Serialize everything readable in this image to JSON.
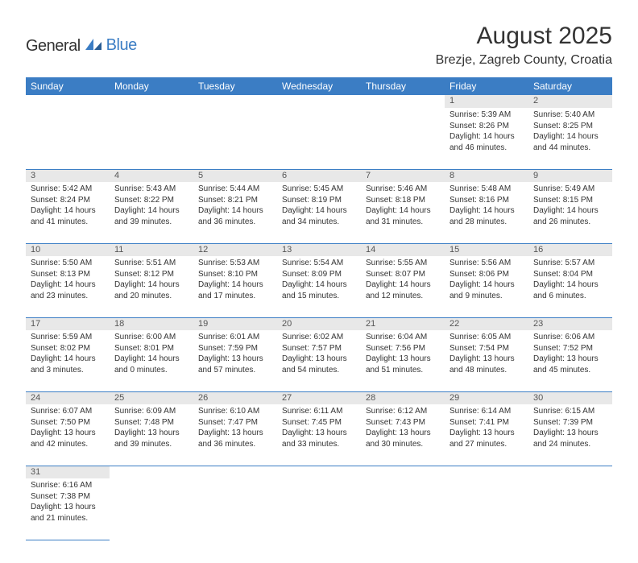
{
  "logo": {
    "text1": "General",
    "text2": "Blue"
  },
  "title": "August 2025",
  "location": "Brezje, Zagreb County, Croatia",
  "colors": {
    "header_bg": "#3b7dc4",
    "daynum_bg": "#e8e8e8",
    "border": "#3b7dc4",
    "text": "#333333"
  },
  "weekdays": [
    "Sunday",
    "Monday",
    "Tuesday",
    "Wednesday",
    "Thursday",
    "Friday",
    "Saturday"
  ],
  "weeks": [
    [
      null,
      null,
      null,
      null,
      null,
      {
        "n": "1",
        "sr": "Sunrise: 5:39 AM",
        "ss": "Sunset: 8:26 PM",
        "dl": "Daylight: 14 hours and 46 minutes."
      },
      {
        "n": "2",
        "sr": "Sunrise: 5:40 AM",
        "ss": "Sunset: 8:25 PM",
        "dl": "Daylight: 14 hours and 44 minutes."
      }
    ],
    [
      {
        "n": "3",
        "sr": "Sunrise: 5:42 AM",
        "ss": "Sunset: 8:24 PM",
        "dl": "Daylight: 14 hours and 41 minutes."
      },
      {
        "n": "4",
        "sr": "Sunrise: 5:43 AM",
        "ss": "Sunset: 8:22 PM",
        "dl": "Daylight: 14 hours and 39 minutes."
      },
      {
        "n": "5",
        "sr": "Sunrise: 5:44 AM",
        "ss": "Sunset: 8:21 PM",
        "dl": "Daylight: 14 hours and 36 minutes."
      },
      {
        "n": "6",
        "sr": "Sunrise: 5:45 AM",
        "ss": "Sunset: 8:19 PM",
        "dl": "Daylight: 14 hours and 34 minutes."
      },
      {
        "n": "7",
        "sr": "Sunrise: 5:46 AM",
        "ss": "Sunset: 8:18 PM",
        "dl": "Daylight: 14 hours and 31 minutes."
      },
      {
        "n": "8",
        "sr": "Sunrise: 5:48 AM",
        "ss": "Sunset: 8:16 PM",
        "dl": "Daylight: 14 hours and 28 minutes."
      },
      {
        "n": "9",
        "sr": "Sunrise: 5:49 AM",
        "ss": "Sunset: 8:15 PM",
        "dl": "Daylight: 14 hours and 26 minutes."
      }
    ],
    [
      {
        "n": "10",
        "sr": "Sunrise: 5:50 AM",
        "ss": "Sunset: 8:13 PM",
        "dl": "Daylight: 14 hours and 23 minutes."
      },
      {
        "n": "11",
        "sr": "Sunrise: 5:51 AM",
        "ss": "Sunset: 8:12 PM",
        "dl": "Daylight: 14 hours and 20 minutes."
      },
      {
        "n": "12",
        "sr": "Sunrise: 5:53 AM",
        "ss": "Sunset: 8:10 PM",
        "dl": "Daylight: 14 hours and 17 minutes."
      },
      {
        "n": "13",
        "sr": "Sunrise: 5:54 AM",
        "ss": "Sunset: 8:09 PM",
        "dl": "Daylight: 14 hours and 15 minutes."
      },
      {
        "n": "14",
        "sr": "Sunrise: 5:55 AM",
        "ss": "Sunset: 8:07 PM",
        "dl": "Daylight: 14 hours and 12 minutes."
      },
      {
        "n": "15",
        "sr": "Sunrise: 5:56 AM",
        "ss": "Sunset: 8:06 PM",
        "dl": "Daylight: 14 hours and 9 minutes."
      },
      {
        "n": "16",
        "sr": "Sunrise: 5:57 AM",
        "ss": "Sunset: 8:04 PM",
        "dl": "Daylight: 14 hours and 6 minutes."
      }
    ],
    [
      {
        "n": "17",
        "sr": "Sunrise: 5:59 AM",
        "ss": "Sunset: 8:02 PM",
        "dl": "Daylight: 14 hours and 3 minutes."
      },
      {
        "n": "18",
        "sr": "Sunrise: 6:00 AM",
        "ss": "Sunset: 8:01 PM",
        "dl": "Daylight: 14 hours and 0 minutes."
      },
      {
        "n": "19",
        "sr": "Sunrise: 6:01 AM",
        "ss": "Sunset: 7:59 PM",
        "dl": "Daylight: 13 hours and 57 minutes."
      },
      {
        "n": "20",
        "sr": "Sunrise: 6:02 AM",
        "ss": "Sunset: 7:57 PM",
        "dl": "Daylight: 13 hours and 54 minutes."
      },
      {
        "n": "21",
        "sr": "Sunrise: 6:04 AM",
        "ss": "Sunset: 7:56 PM",
        "dl": "Daylight: 13 hours and 51 minutes."
      },
      {
        "n": "22",
        "sr": "Sunrise: 6:05 AM",
        "ss": "Sunset: 7:54 PM",
        "dl": "Daylight: 13 hours and 48 minutes."
      },
      {
        "n": "23",
        "sr": "Sunrise: 6:06 AM",
        "ss": "Sunset: 7:52 PM",
        "dl": "Daylight: 13 hours and 45 minutes."
      }
    ],
    [
      {
        "n": "24",
        "sr": "Sunrise: 6:07 AM",
        "ss": "Sunset: 7:50 PM",
        "dl": "Daylight: 13 hours and 42 minutes."
      },
      {
        "n": "25",
        "sr": "Sunrise: 6:09 AM",
        "ss": "Sunset: 7:48 PM",
        "dl": "Daylight: 13 hours and 39 minutes."
      },
      {
        "n": "26",
        "sr": "Sunrise: 6:10 AM",
        "ss": "Sunset: 7:47 PM",
        "dl": "Daylight: 13 hours and 36 minutes."
      },
      {
        "n": "27",
        "sr": "Sunrise: 6:11 AM",
        "ss": "Sunset: 7:45 PM",
        "dl": "Daylight: 13 hours and 33 minutes."
      },
      {
        "n": "28",
        "sr": "Sunrise: 6:12 AM",
        "ss": "Sunset: 7:43 PM",
        "dl": "Daylight: 13 hours and 30 minutes."
      },
      {
        "n": "29",
        "sr": "Sunrise: 6:14 AM",
        "ss": "Sunset: 7:41 PM",
        "dl": "Daylight: 13 hours and 27 minutes."
      },
      {
        "n": "30",
        "sr": "Sunrise: 6:15 AM",
        "ss": "Sunset: 7:39 PM",
        "dl": "Daylight: 13 hours and 24 minutes."
      }
    ],
    [
      {
        "n": "31",
        "sr": "Sunrise: 6:16 AM",
        "ss": "Sunset: 7:38 PM",
        "dl": "Daylight: 13 hours and 21 minutes."
      },
      null,
      null,
      null,
      null,
      null,
      null
    ]
  ]
}
